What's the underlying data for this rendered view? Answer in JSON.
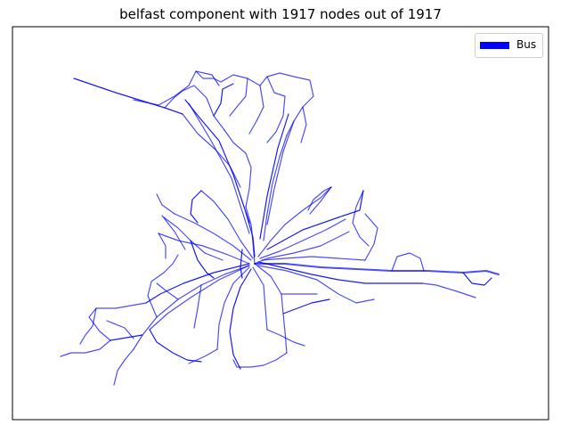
{
  "title": "belfast component with 1917 nodes out of 1917",
  "legend": {
    "label": "Bus",
    "color": "#0000ff"
  },
  "network": {
    "edge_color": "#0000ff"
  }
}
